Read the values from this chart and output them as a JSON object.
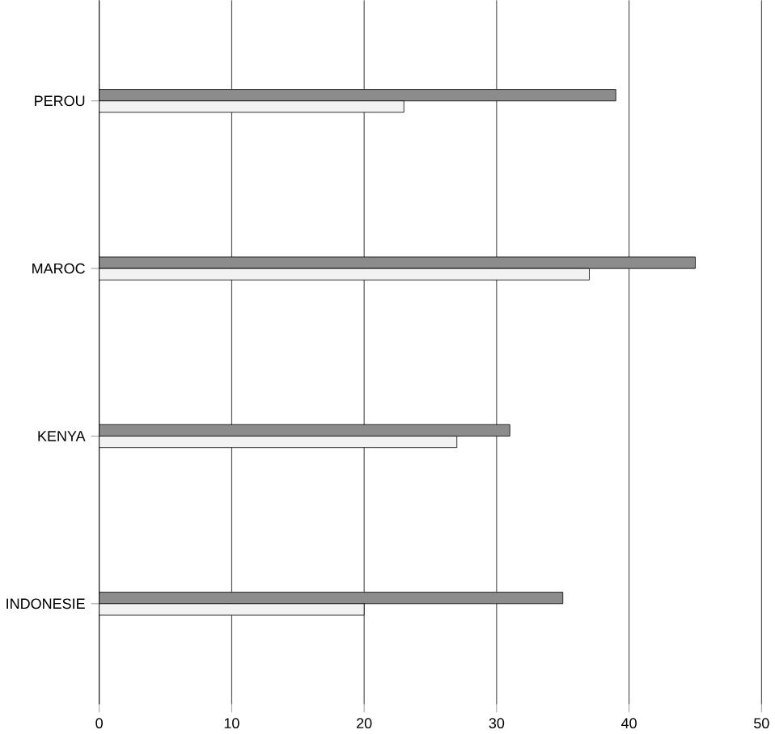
{
  "chart_data": {
    "type": "bar",
    "orientation": "horizontal",
    "categories": [
      "PEROU",
      "MAROC",
      "KENYA",
      "INDONESIE"
    ],
    "series": [
      {
        "color": "#8c8c8c",
        "values": [
          39,
          45,
          31,
          35
        ]
      },
      {
        "color": "#f2f2f2",
        "values": [
          23,
          37,
          27,
          20
        ]
      }
    ],
    "xlim": [
      0,
      50
    ],
    "xticks": [
      0,
      10,
      20,
      30,
      40,
      50
    ],
    "grid": "x"
  }
}
